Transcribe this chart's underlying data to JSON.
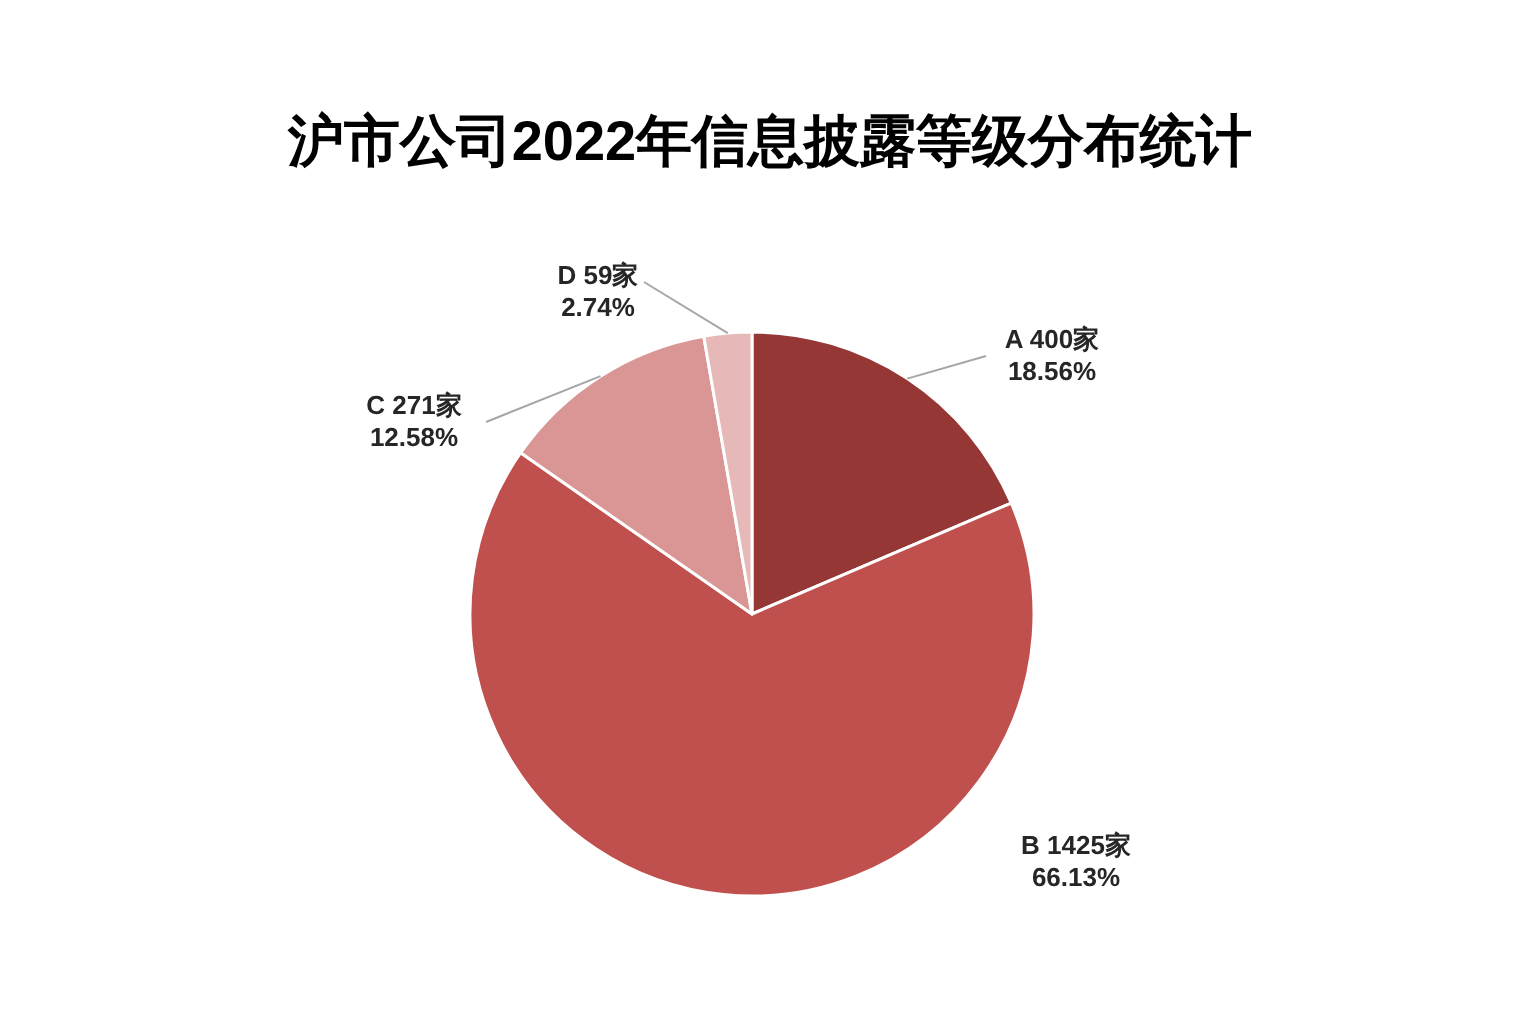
{
  "chart_data": {
    "type": "pie",
    "title": "沪市公司2022年信息披露等级分布统计",
    "categories": [
      "A",
      "B",
      "C",
      "D"
    ],
    "values": [
      400,
      1425,
      271,
      59
    ],
    "colors": [
      "#953735",
      "#c0504d",
      "#d99694",
      "#e6b9b8"
    ],
    "value_labels": [
      "400家\n18.56%",
      "1425家\n66.13%",
      "271家\n12.58%",
      "59家\n2.74%"
    ]
  }
}
